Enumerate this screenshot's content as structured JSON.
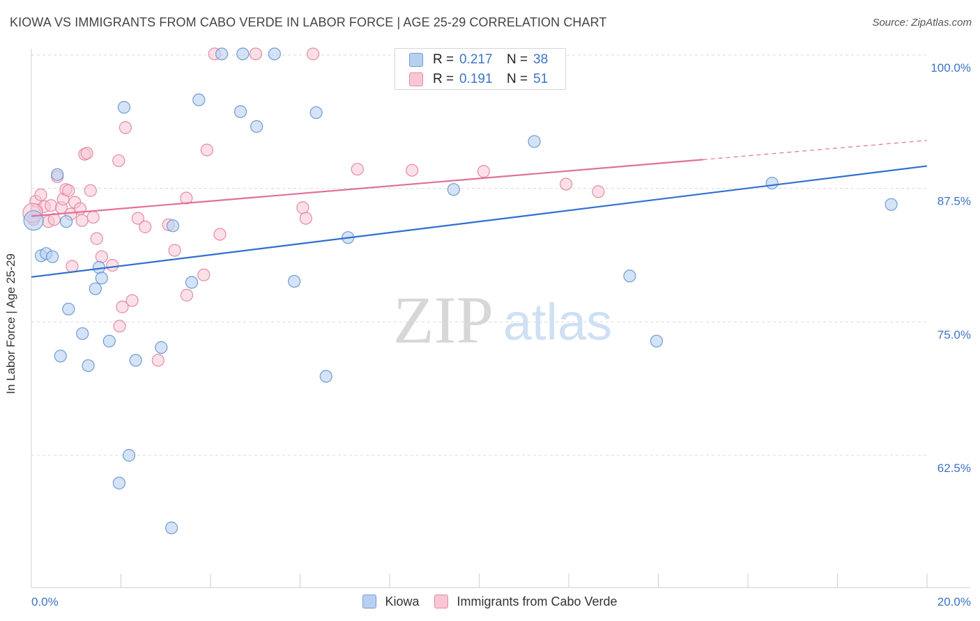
{
  "title": "KIOWA VS IMMIGRANTS FROM CABO VERDE IN LABOR FORCE | AGE 25-29 CORRELATION CHART",
  "source": "Source: ZipAtlas.com",
  "watermark": {
    "zip": "ZIP",
    "atlas": "atlas"
  },
  "legend_top": {
    "rows": [
      {
        "r_label": "R =",
        "r_value": "0.217",
        "n_label": "N =",
        "n_value": "38"
      },
      {
        "r_label": "R =",
        "r_value": "0.191",
        "n_label": "N =",
        "n_value": "51"
      }
    ]
  },
  "legend_bottom": [
    {
      "label": "Kiowa"
    },
    {
      "label": "Immigrants from Cabo Verde"
    }
  ],
  "colors": {
    "blue_fill": "#b8d0f0",
    "blue_stroke": "#6f9bd6",
    "blue_line": "#2f6fcf",
    "pink_fill": "#f8c6d4",
    "pink_stroke": "#e58aa5",
    "pink_line": "#e0709a",
    "axis_label": "#3b74c4",
    "grid": "#d9d9d9"
  },
  "chart_data": {
    "type": "scatter",
    "title": "KIOWA VS IMMIGRANTS FROM CABO VERDE IN LABOR FORCE | AGE 25-29 CORRELATION CHART",
    "xlabel": "",
    "ylabel": "In Labor Force | Age 25-29",
    "xlim": [
      0,
      20
    ],
    "ylim": [
      50,
      100
    ],
    "x_tick_labels": [
      "0.0%",
      "20.0%"
    ],
    "y_ticks": [
      62.5,
      75.0,
      87.5,
      100.0
    ],
    "y_tick_labels": [
      "62.5%",
      "75.0%",
      "87.5%",
      "100.0%"
    ],
    "grid": true,
    "series": [
      {
        "name": "Kiowa",
        "color": "blue",
        "R": 0.217,
        "N": 38,
        "trend": {
          "x0": 0,
          "y0": 79.2,
          "x1": 20,
          "y1": 89.6
        },
        "points": [
          [
            0.05,
            84.5
          ],
          [
            0.22,
            81.2
          ],
          [
            0.33,
            81.4
          ],
          [
            0.47,
            81.1
          ],
          [
            0.58,
            88.8
          ],
          [
            0.78,
            84.4
          ],
          [
            0.83,
            76.2
          ],
          [
            0.65,
            71.8
          ],
          [
            1.14,
            73.9
          ],
          [
            1.27,
            70.9
          ],
          [
            1.43,
            78.1
          ],
          [
            1.51,
            80.1
          ],
          [
            1.57,
            79.1
          ],
          [
            1.74,
            73.2
          ],
          [
            1.96,
            59.9
          ],
          [
            2.07,
            95.1
          ],
          [
            2.18,
            62.5
          ],
          [
            2.33,
            71.4
          ],
          [
            2.9,
            72.6
          ],
          [
            3.13,
            55.7
          ],
          [
            3.16,
            84.0
          ],
          [
            3.58,
            78.7
          ],
          [
            3.74,
            95.8
          ],
          [
            4.25,
            100.1
          ],
          [
            4.67,
            94.7
          ],
          [
            4.72,
            100.1
          ],
          [
            5.03,
            93.3
          ],
          [
            5.43,
            100.1
          ],
          [
            5.87,
            78.8
          ],
          [
            6.36,
            94.6
          ],
          [
            6.58,
            69.9
          ],
          [
            7.07,
            82.9
          ],
          [
            9.43,
            87.4
          ],
          [
            11.23,
            91.9
          ],
          [
            13.36,
            79.3
          ],
          [
            13.96,
            73.2
          ],
          [
            16.54,
            88.0
          ],
          [
            19.2,
            86.0
          ]
        ]
      },
      {
        "name": "Immigrants from Cabo Verde",
        "color": "pink",
        "R": 0.191,
        "N": 51,
        "trend": {
          "x0": 0,
          "y0": 84.9,
          "x1": 15,
          "y1": 90.2
        },
        "trend_dashed": {
          "x0": 15,
          "y0": 90.2,
          "x1": 20,
          "y1": 92.0
        },
        "points": [
          [
            0.05,
            84.6
          ],
          [
            0.1,
            86.3
          ],
          [
            0.12,
            85.5
          ],
          [
            0.21,
            86.9
          ],
          [
            0.29,
            85.8
          ],
          [
            0.38,
            84.4
          ],
          [
            0.44,
            85.9
          ],
          [
            0.51,
            84.6
          ],
          [
            0.58,
            88.6
          ],
          [
            0.67,
            85.7
          ],
          [
            0.71,
            86.5
          ],
          [
            0.77,
            87.4
          ],
          [
            0.83,
            87.3
          ],
          [
            0.88,
            85.1
          ],
          [
            0.91,
            80.2
          ],
          [
            0.97,
            86.2
          ],
          [
            1.09,
            85.6
          ],
          [
            1.13,
            84.5
          ],
          [
            1.19,
            90.7
          ],
          [
            1.24,
            90.8
          ],
          [
            1.32,
            87.3
          ],
          [
            1.38,
            84.8
          ],
          [
            1.46,
            82.8
          ],
          [
            1.57,
            81.1
          ],
          [
            1.81,
            80.3
          ],
          [
            1.95,
            90.1
          ],
          [
            1.97,
            74.6
          ],
          [
            2.03,
            76.4
          ],
          [
            2.1,
            93.2
          ],
          [
            2.25,
            77.0
          ],
          [
            2.38,
            84.7
          ],
          [
            2.54,
            83.9
          ],
          [
            2.83,
            71.4
          ],
          [
            3.06,
            84.1
          ],
          [
            3.2,
            81.7
          ],
          [
            3.46,
            86.6
          ],
          [
            3.47,
            77.5
          ],
          [
            3.85,
            79.4
          ],
          [
            3.92,
            91.1
          ],
          [
            4.09,
            100.1
          ],
          [
            4.21,
            83.2
          ],
          [
            5.01,
            100.1
          ],
          [
            6.06,
            85.7
          ],
          [
            6.13,
            84.7
          ],
          [
            6.29,
            100.1
          ],
          [
            7.28,
            89.3
          ],
          [
            8.5,
            89.2
          ],
          [
            10.1,
            89.1
          ],
          [
            11.94,
            87.9
          ],
          [
            12.66,
            87.2
          ],
          [
            0.03,
            85.2
          ]
        ]
      }
    ]
  }
}
